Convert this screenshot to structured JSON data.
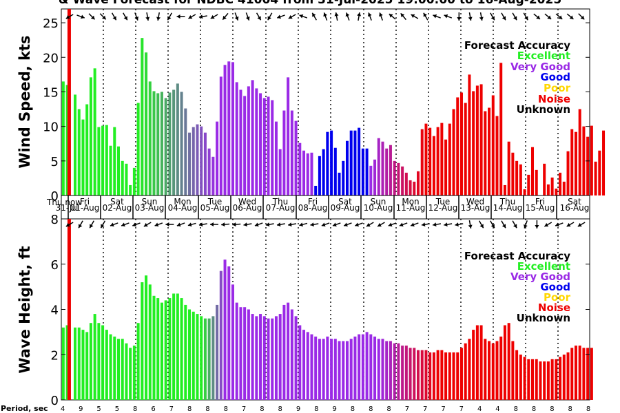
{
  "title": "& Wave Forecast for NDBC 41004 from 31-Jul-2025 19:00:00 to 16-Aug-2025",
  "accuracy_legend": {
    "heading": "Forecast Accuracy",
    "items": [
      {
        "label": "Excellent",
        "color": "#22ee22"
      },
      {
        "label": "Very Good",
        "color": "#9a2ae6"
      },
      {
        "label": "Good",
        "color": "#0000ee"
      },
      {
        "label": "Poor",
        "color": "#ffd700"
      },
      {
        "label": "Noise",
        "color": "#ee0000"
      },
      {
        "label": "Unknown",
        "color": "#000000"
      }
    ]
  },
  "now_label": "Thu now",
  "period_label": "Period, sec",
  "day_labels": [
    {
      "day": "Thu",
      "date": "31-Jul"
    },
    {
      "day": "Fri",
      "date": "01-Aug"
    },
    {
      "day": "Sat",
      "date": "02-Aug"
    },
    {
      "day": "Sun",
      "date": "03-Aug"
    },
    {
      "day": "Mon",
      "date": "04-Aug"
    },
    {
      "day": "Tue",
      "date": "05-Aug"
    },
    {
      "day": "Wed",
      "date": "06-Aug"
    },
    {
      "day": "Thu",
      "date": "07-Aug"
    },
    {
      "day": "Fri",
      "date": "08-Aug"
    },
    {
      "day": "Sat",
      "date": "09-Aug"
    },
    {
      "day": "Sun",
      "date": "10-Aug"
    },
    {
      "day": "Mon",
      "date": "11-Aug"
    },
    {
      "day": "Tue",
      "date": "12-Aug"
    },
    {
      "day": "Wed",
      "date": "13-Aug"
    },
    {
      "day": "Thu",
      "date": "14-Aug"
    },
    {
      "day": "Fri",
      "date": "15-Aug"
    },
    {
      "day": "Sat",
      "date": "16-Aug"
    }
  ],
  "period_values": [
    4,
    9,
    5,
    5,
    8,
    6,
    7,
    8,
    8,
    8,
    7,
    8,
    8,
    9,
    8,
    9,
    8,
    8,
    8,
    7,
    7,
    7,
    7,
    4,
    4,
    8,
    8,
    8,
    8,
    8
  ],
  "chart_data": [
    {
      "type": "bar",
      "ylabel": "Wind Speed, kts",
      "ylim": [
        0,
        27
      ],
      "yticks": [
        0,
        5,
        10,
        15,
        20,
        25
      ],
      "x_unit": "hours since 31-Jul 19:00",
      "now_x": 1.5,
      "values": [
        16.5,
        16,
        0,
        14.6,
        12.5,
        11,
        13.2,
        17.1,
        18.4,
        9.9,
        10.1,
        10.2,
        7.2,
        9.9,
        7.1,
        5,
        4.6,
        1.5,
        4,
        13.4,
        22.8,
        20.7,
        16.5,
        15.1,
        14.8,
        15,
        14.1,
        14.9,
        15.3,
        16.2,
        15,
        12.6,
        9.1,
        9.9,
        10.3,
        10,
        9.1,
        6.8,
        5.6,
        10.7,
        17.2,
        18.9,
        19.4,
        19.3,
        16.4,
        15.3,
        14.4,
        15.8,
        16.7,
        15.5,
        14.8,
        14.1,
        14.3,
        13.8,
        10.7,
        6.7,
        12.3,
        17.1,
        12.3,
        10.8,
        7.6,
        6.5,
        6.1,
        6.2,
        1.4,
        5.7,
        6.7,
        9.2,
        9.4,
        6.9,
        3.3,
        5,
        7.9,
        9.4,
        9.4,
        9.8,
        6.8,
        6.8,
        4.3,
        5.2,
        8.3,
        7.8,
        6.8,
        7.3,
        5,
        4.7,
        4.2,
        3.3,
        2.2,
        2,
        3.5,
        9.6,
        10.4,
        9.8,
        8.6,
        9.9,
        10.5,
        8.1,
        10.4,
        12.5,
        14.2,
        14.9,
        13.4,
        17.5,
        15.1,
        15.9,
        16.1,
        12.2,
        12.7,
        14.5,
        11.5,
        19.2,
        1.5,
        7.8,
        6.2,
        5,
        4.5,
        0.9,
        3,
        7,
        3.7,
        0,
        4.6,
        1.6,
        2.6,
        1,
        3.3,
        2,
        6.4,
        9.6,
        9.2,
        12.5,
        10,
        8.5,
        10.1,
        4.9,
        6.5,
        9.4
      ],
      "segments": [
        {
          "from": 0,
          "to": 16,
          "accuracy": "Excellent"
        },
        {
          "from": 17,
          "to": 18,
          "accuracy": "Excellent"
        },
        {
          "from": 19,
          "to": 39,
          "accuracy": "Excellent to Very Good"
        },
        {
          "from": 40,
          "to": 63,
          "accuracy": "Very Good"
        },
        {
          "from": 64,
          "to": 77,
          "accuracy": "Good"
        },
        {
          "from": 78,
          "to": 92,
          "accuracy": "Very Good to Noise"
        },
        {
          "from": 93,
          "to": 133,
          "accuracy": "Noise"
        }
      ]
    },
    {
      "type": "bar",
      "ylabel": "Wave Height, ft",
      "ylim": [
        0,
        8
      ],
      "yticks": [
        0,
        2,
        4,
        6,
        8
      ],
      "x_unit": "hours since 31-Jul 19:00",
      "now_x": 1.5,
      "values": [
        3.2,
        3.3,
        0,
        3.2,
        3.2,
        3.1,
        3,
        3.4,
        3.8,
        3.4,
        3.3,
        3.1,
        2.9,
        2.8,
        2.7,
        2.7,
        2.5,
        2.3,
        2.4,
        3.4,
        5.2,
        5.5,
        5.1,
        4.6,
        4.5,
        4.3,
        4.4,
        4.5,
        4.7,
        4.7,
        4.5,
        4.2,
        4,
        3.9,
        3.8,
        3.7,
        3.6,
        3.6,
        3.7,
        4.2,
        5.7,
        6.2,
        5.9,
        5.1,
        4.3,
        4.1,
        4.1,
        4,
        3.8,
        3.7,
        3.8,
        3.7,
        3.6,
        3.6,
        3.7,
        3.8,
        4.2,
        4.3,
        4,
        3.7,
        3.3,
        3.1,
        3,
        2.9,
        2.8,
        2.7,
        2.7,
        2.8,
        2.7,
        2.7,
        2.6,
        2.6,
        2.6,
        2.7,
        2.8,
        2.9,
        2.9,
        3,
        2.9,
        2.8,
        2.7,
        2.7,
        2.6,
        2.6,
        2.5,
        2.5,
        2.4,
        2.4,
        2.3,
        2.3,
        2.2,
        2.2,
        2.2,
        2.1,
        2.1,
        2.2,
        2.2,
        2.1,
        2.1,
        2.1,
        2.1,
        2.3,
        2.5,
        2.7,
        3.1,
        3.3,
        3.3,
        2.7,
        2.6,
        2.5,
        2.6,
        2.8,
        3.3,
        3.4,
        2.6,
        2.2,
        2,
        1.9,
        1.8,
        1.8,
        1.8,
        1.7,
        1.7,
        1.7,
        1.8,
        1.8,
        1.9,
        2,
        2.1,
        2.3,
        2.4,
        2.4,
        2.3,
        2.3,
        2.3
      ],
      "segments": [
        {
          "from": 0,
          "to": 16,
          "accuracy": "Excellent"
        },
        {
          "from": 17,
          "to": 39,
          "accuracy": "Excellent to Very Good"
        },
        {
          "from": 40,
          "to": 79,
          "accuracy": "Very Good"
        },
        {
          "from": 80,
          "to": 95,
          "accuracy": "Very Good to Noise"
        },
        {
          "from": 96,
          "to": 133,
          "accuracy": "Noise"
        }
      ]
    }
  ],
  "wind_arrow_directions_deg": [
    150,
    20,
    45,
    45,
    60,
    60,
    70,
    80,
    100,
    120,
    180,
    150,
    170,
    150,
    130,
    70,
    70,
    60,
    120,
    160,
    150,
    200,
    240,
    250,
    260,
    250,
    280,
    250,
    250,
    220,
    230,
    210,
    240,
    200,
    200,
    90,
    80,
    80,
    60,
    60,
    60,
    60,
    40,
    40,
    40,
    40,
    45
  ],
  "wave_arrow_directions_deg": [
    150,
    120,
    120,
    120,
    160,
    160,
    160,
    150,
    160,
    180,
    160,
    165,
    170,
    180,
    175,
    175,
    170,
    160,
    170,
    170,
    170,
    165,
    170,
    160,
    160,
    160,
    160,
    150,
    150,
    160,
    160,
    160,
    170,
    170,
    170,
    170,
    80,
    60,
    60,
    60,
    60,
    110,
    90,
    150,
    160,
    150,
    150
  ]
}
